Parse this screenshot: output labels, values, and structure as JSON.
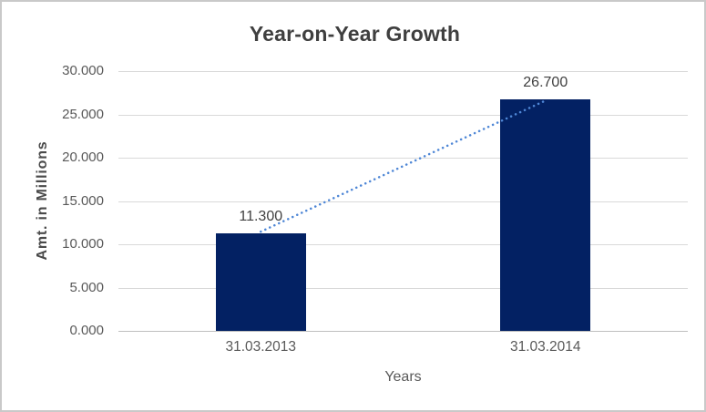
{
  "chart_data": {
    "type": "bar",
    "title": "Year-on-Year Growth",
    "xlabel": "Years",
    "ylabel": "Amt. in Millions",
    "categories": [
      "31.03.2013",
      "31.03.2014"
    ],
    "values": [
      11.3,
      26.7
    ],
    "data_labels": [
      "11.300",
      "26.700"
    ],
    "y_tick_labels": [
      "0.000",
      "5.000",
      "10.000",
      "15.000",
      "20.000",
      "25.000",
      "30.000"
    ],
    "y_tick_values": [
      0,
      5,
      10,
      15,
      20,
      25,
      30
    ],
    "ylim": [
      0,
      30
    ],
    "grid": true,
    "legend": "none",
    "trendline": {
      "type": "linear",
      "style": "dotted",
      "from_value": 11.3,
      "to_value": 26.7
    },
    "colors": {
      "bar": "#032163",
      "trendline": "#4f87d6",
      "gridline": "#d9d9d9",
      "axis_line": "#bfbfbf",
      "title": "#3f3f3f",
      "tick_label": "#595959",
      "axis_title": "#4a4a4a",
      "data_label": "#404040",
      "background": "#ffffff",
      "frame_border": "#c9c9c9"
    }
  }
}
